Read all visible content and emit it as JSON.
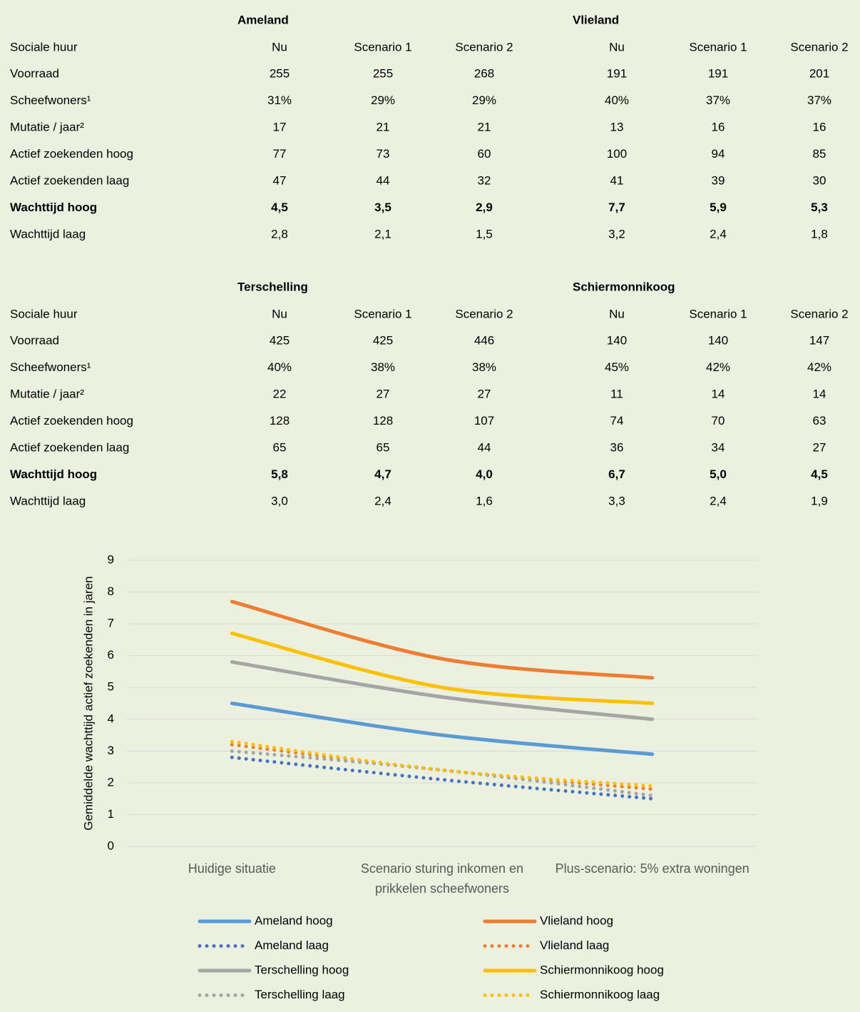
{
  "tables": [
    {
      "groups": [
        "Ameland",
        "Vlieland"
      ],
      "header": [
        "Sociale huur",
        "Nu",
        "Scenario 1",
        "Scenario 2",
        "Nu",
        "Scenario 1",
        "Scenario 2"
      ],
      "rows": [
        {
          "cells": [
            "Voorraad",
            "255",
            "255",
            "268",
            "191",
            "191",
            "201"
          ],
          "red": [
            3,
            6
          ]
        },
        {
          "cells": [
            "Scheefwoners¹",
            "31%",
            "29%",
            "29%",
            "40%",
            "37%",
            "37%"
          ],
          "red": [
            3,
            5,
            6
          ]
        },
        {
          "cells": [
            "Mutatie / jaar²",
            "17",
            "21",
            "21",
            "13",
            "16",
            "16"
          ],
          "red": [
            2,
            3,
            5,
            6
          ]
        },
        {
          "cells": [
            "Actief zoekenden hoog",
            "77",
            "73",
            "60",
            "100",
            "94",
            "85"
          ],
          "red": [
            5,
            6
          ]
        },
        {
          "cells": [
            "Actief zoekenden laag",
            "47",
            "44",
            "32",
            "41",
            "39",
            "30"
          ],
          "red": [
            5,
            6
          ]
        },
        {
          "cells": [
            "Wachttijd hoog",
            "4,5",
            "3,5",
            "2,9",
            "7,7",
            "5,9",
            "5,3"
          ],
          "red": [],
          "bold": true
        },
        {
          "cells": [
            "Wachttijd laag",
            "2,8",
            "2,1",
            "1,5",
            "3,2",
            "2,4",
            "1,8"
          ],
          "red": []
        }
      ]
    },
    {
      "groups": [
        "Terschelling",
        "Schiermonnikoog"
      ],
      "header": [
        "Sociale huur",
        "Nu",
        "Scenario 1",
        "Scenario 2",
        "Nu",
        "Scenario 1",
        "Scenario 2"
      ],
      "rows": [
        {
          "cells": [
            "Voorraad",
            "425",
            "425",
            "446",
            "140",
            "140",
            "147"
          ],
          "red": [
            3,
            6
          ]
        },
        {
          "cells": [
            "Scheefwoners¹",
            "40%",
            "38%",
            "38%",
            "45%",
            "42%",
            "42%"
          ],
          "red": [
            2,
            3,
            5,
            6
          ]
        },
        {
          "cells": [
            "Mutatie / jaar²",
            "22",
            "27",
            "27",
            "11",
            "14",
            "14"
          ],
          "red": [
            2,
            3,
            5,
            6
          ]
        },
        {
          "cells": [
            "Actief zoekenden hoog",
            "128",
            "128",
            "107",
            "74",
            "70",
            "63"
          ],
          "red": [
            5,
            6
          ]
        },
        {
          "cells": [
            "Actief zoekenden laag",
            "65",
            "65",
            "44",
            "36",
            "34",
            "27"
          ],
          "red": [
            3,
            5,
            6
          ]
        },
        {
          "cells": [
            "Wachttijd hoog",
            "5,8",
            "4,7",
            "4,0",
            "6,7",
            "5,0",
            "4,5"
          ],
          "red": [],
          "bold": true
        },
        {
          "cells": [
            "Wachttijd laag",
            "3,0",
            "2,4",
            "1,6",
            "3,3",
            "2,4",
            "1,9"
          ],
          "red": []
        }
      ]
    }
  ],
  "chart_data": {
    "type": "line",
    "y_label": "Gemiddelde wachttijd actief zoekenden in jaren",
    "categories": [
      "Huidige situatie",
      "Scenario sturing inkomen en prikkelen scheefwoners",
      "Plus-scenario: 5% extra woningen"
    ],
    "ylim": [
      0,
      9
    ],
    "yticks": [
      0,
      1,
      2,
      3,
      4,
      5,
      6,
      7,
      8,
      9
    ],
    "grid": true,
    "series": [
      {
        "name": "Ameland hoog",
        "color": "#5b9bd5",
        "style": "solid",
        "values": [
          4.5,
          3.5,
          2.9
        ]
      },
      {
        "name": "Vlieland hoog",
        "color": "#ed7d31",
        "style": "solid",
        "values": [
          7.7,
          5.9,
          5.3
        ]
      },
      {
        "name": "Ameland laag",
        "color": "#4472c4",
        "style": "dotted",
        "values": [
          2.8,
          2.1,
          1.5
        ]
      },
      {
        "name": "Vlieland laag",
        "color": "#ed7d31",
        "style": "dotted",
        "values": [
          3.2,
          2.4,
          1.8
        ]
      },
      {
        "name": "Terschelling hoog",
        "color": "#a5a5a5",
        "style": "solid",
        "values": [
          5.8,
          4.7,
          4.0
        ]
      },
      {
        "name": "Schiermonnikoog hoog",
        "color": "#ffc000",
        "style": "solid",
        "values": [
          6.7,
          5.0,
          4.5
        ]
      },
      {
        "name": "Terschelling laag",
        "color": "#a5a5a5",
        "style": "dotted",
        "values": [
          3.0,
          2.4,
          1.6
        ]
      },
      {
        "name": "Schiermonnikoog laag",
        "color": "#ffc000",
        "style": "dotted",
        "values": [
          3.3,
          2.4,
          1.9
        ]
      }
    ]
  }
}
